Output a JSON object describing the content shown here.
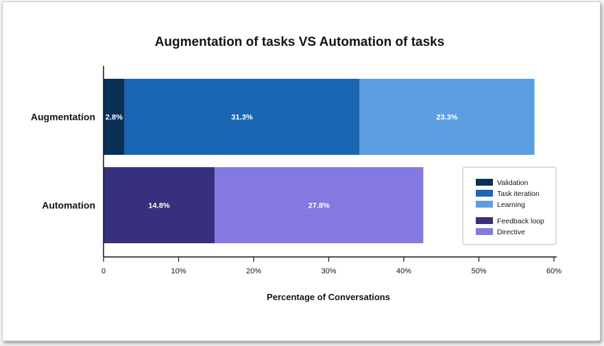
{
  "chart_data": {
    "type": "bar",
    "orientation": "horizontal",
    "stacked": true,
    "title": "Augmentation of tasks VS Automation of tasks",
    "xlabel": "Percentage of Conversations",
    "ylabel": "",
    "xlim": [
      0,
      60
    ],
    "x_ticks": [
      0,
      10,
      20,
      30,
      40,
      50,
      60
    ],
    "x_tick_labels": [
      "0",
      "10%",
      "20%",
      "30%",
      "40%",
      "50%",
      "60%"
    ],
    "categories": [
      "Augmentation",
      "Automation"
    ],
    "grid": false,
    "legend_position": "right",
    "series": [
      {
        "name": "Validation",
        "category": "Augmentation",
        "value": 2.8,
        "label": "2.8%",
        "color": "#0b3057"
      },
      {
        "name": "Task iteration",
        "category": "Augmentation",
        "value": 31.3,
        "label": "31.3%",
        "color": "#1b66b2"
      },
      {
        "name": "Learning",
        "category": "Augmentation",
        "value": 23.3,
        "label": "23.3%",
        "color": "#5b9fe0"
      },
      {
        "name": "Feedback loop",
        "category": "Automation",
        "value": 14.8,
        "label": "14.8%",
        "color": "#37307c"
      },
      {
        "name": "Directive",
        "category": "Automation",
        "value": 27.8,
        "label": "27.8%",
        "color": "#8379e0"
      }
    ],
    "legend_groups": [
      [
        "Validation",
        "Task iteration",
        "Learning"
      ],
      [
        "Feedback loop",
        "Directive"
      ]
    ]
  }
}
